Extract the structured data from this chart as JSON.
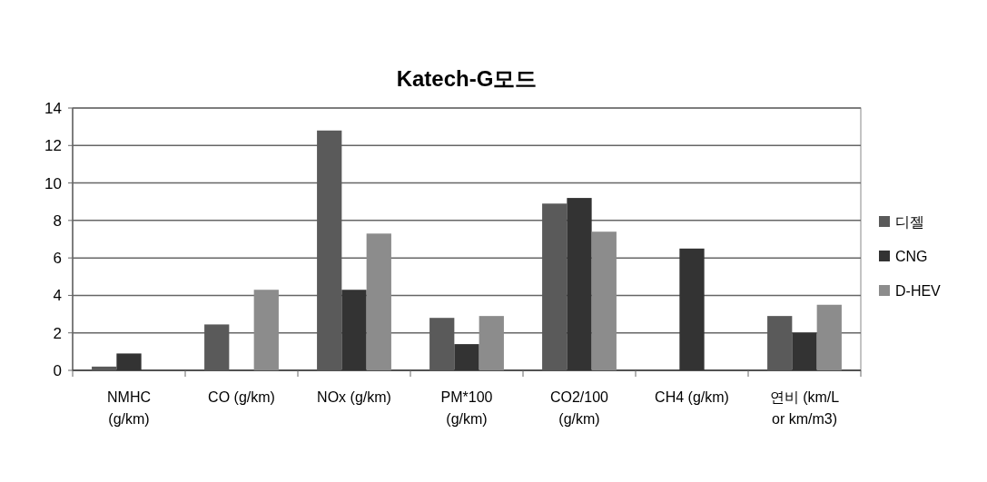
{
  "chart_data": {
    "type": "bar",
    "title": "Katech-G모드",
    "categories": [
      "NMHC (g/km)",
      "CO (g/km)",
      "NOx (g/km)",
      "PM*100 (g/km)",
      "CO2/100 (g/km)",
      "CH4 (g/km)",
      "연비 (km/L or km/m3)"
    ],
    "series": [
      {
        "name": "디젤",
        "color": "#5a5a5a",
        "values": [
          0.2,
          2.45,
          12.8,
          2.8,
          8.9,
          0,
          2.9
        ]
      },
      {
        "name": "CNG",
        "color": "#333333",
        "values": [
          0.9,
          null,
          4.3,
          1.4,
          9.2,
          6.5,
          2.0
        ]
      },
      {
        "name": "D-HEV",
        "color": "#8c8c8c",
        "values": [
          0,
          4.3,
          7.3,
          2.9,
          7.4,
          null,
          3.5
        ]
      }
    ],
    "ylim": [
      0,
      14
    ],
    "yticks": [
      0,
      2,
      4,
      6,
      8,
      10,
      12,
      14
    ],
    "grid": "y",
    "legend": "right"
  }
}
